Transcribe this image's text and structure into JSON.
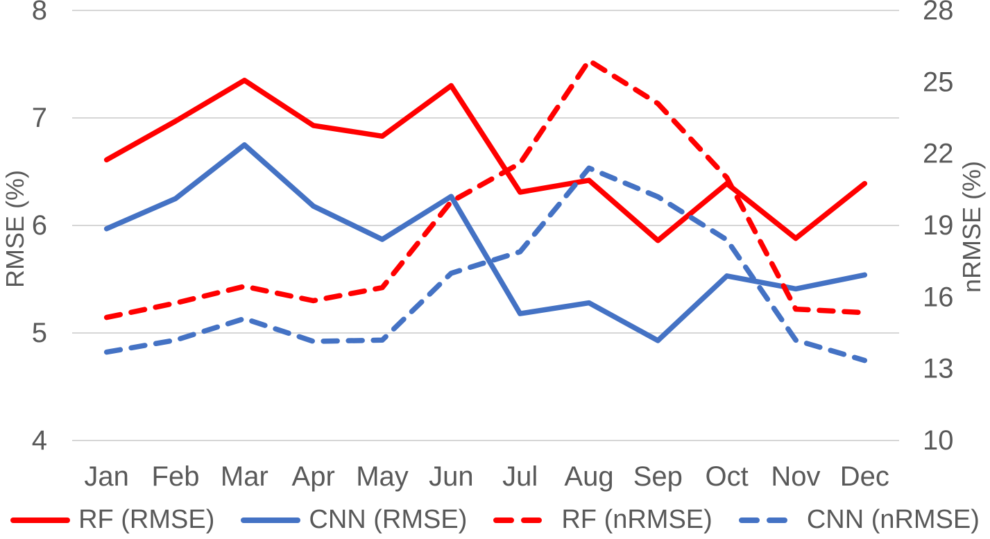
{
  "chart_data": {
    "type": "line",
    "title": "",
    "categories": [
      "Jan",
      "Feb",
      "Mar",
      "Apr",
      "May",
      "Jun",
      "Jul",
      "Aug",
      "Sep",
      "Oct",
      "Nov",
      "Dec"
    ],
    "series": [
      {
        "name": "RF (RMSE)",
        "axis": "left",
        "style": "solid",
        "color": "#FF0000",
        "values": [
          6.61,
          6.97,
          7.35,
          6.93,
          6.83,
          7.3,
          6.31,
          6.42,
          5.86,
          6.39,
          5.88,
          6.39
        ]
      },
      {
        "name": "CNN (RMSE)",
        "axis": "left",
        "style": "solid",
        "color": "#4472C4",
        "values": [
          5.97,
          6.25,
          6.75,
          6.18,
          5.87,
          6.27,
          5.18,
          5.28,
          4.93,
          5.53,
          5.41,
          5.54
        ]
      },
      {
        "name": "RF (nRMSE)",
        "axis": "right",
        "style": "dashed",
        "color": "#FF0000",
        "values": [
          15.15,
          15.75,
          16.45,
          15.85,
          16.4,
          20.0,
          21.6,
          25.9,
          24.1,
          21.0,
          15.5,
          15.35
        ]
      },
      {
        "name": "CNN (nRMSE)",
        "axis": "right",
        "style": "dashed",
        "color": "#4472C4",
        "values": [
          13.7,
          14.2,
          15.1,
          14.15,
          14.2,
          17.0,
          17.9,
          21.4,
          20.2,
          18.4,
          14.2,
          13.35
        ]
      }
    ],
    "left_axis": {
      "label": "RMSE (%)",
      "min": 4,
      "max": 8,
      "ticks": [
        8,
        7,
        6,
        5,
        4
      ]
    },
    "right_axis": {
      "label": "nRMSE (%)",
      "min": 10,
      "max": 28,
      "ticks": [
        28,
        25,
        22,
        19,
        16,
        13,
        10
      ]
    },
    "grid": true,
    "legend_position": "bottom",
    "colors": {
      "grid": "#D6D6D6",
      "text": "#595959"
    }
  }
}
